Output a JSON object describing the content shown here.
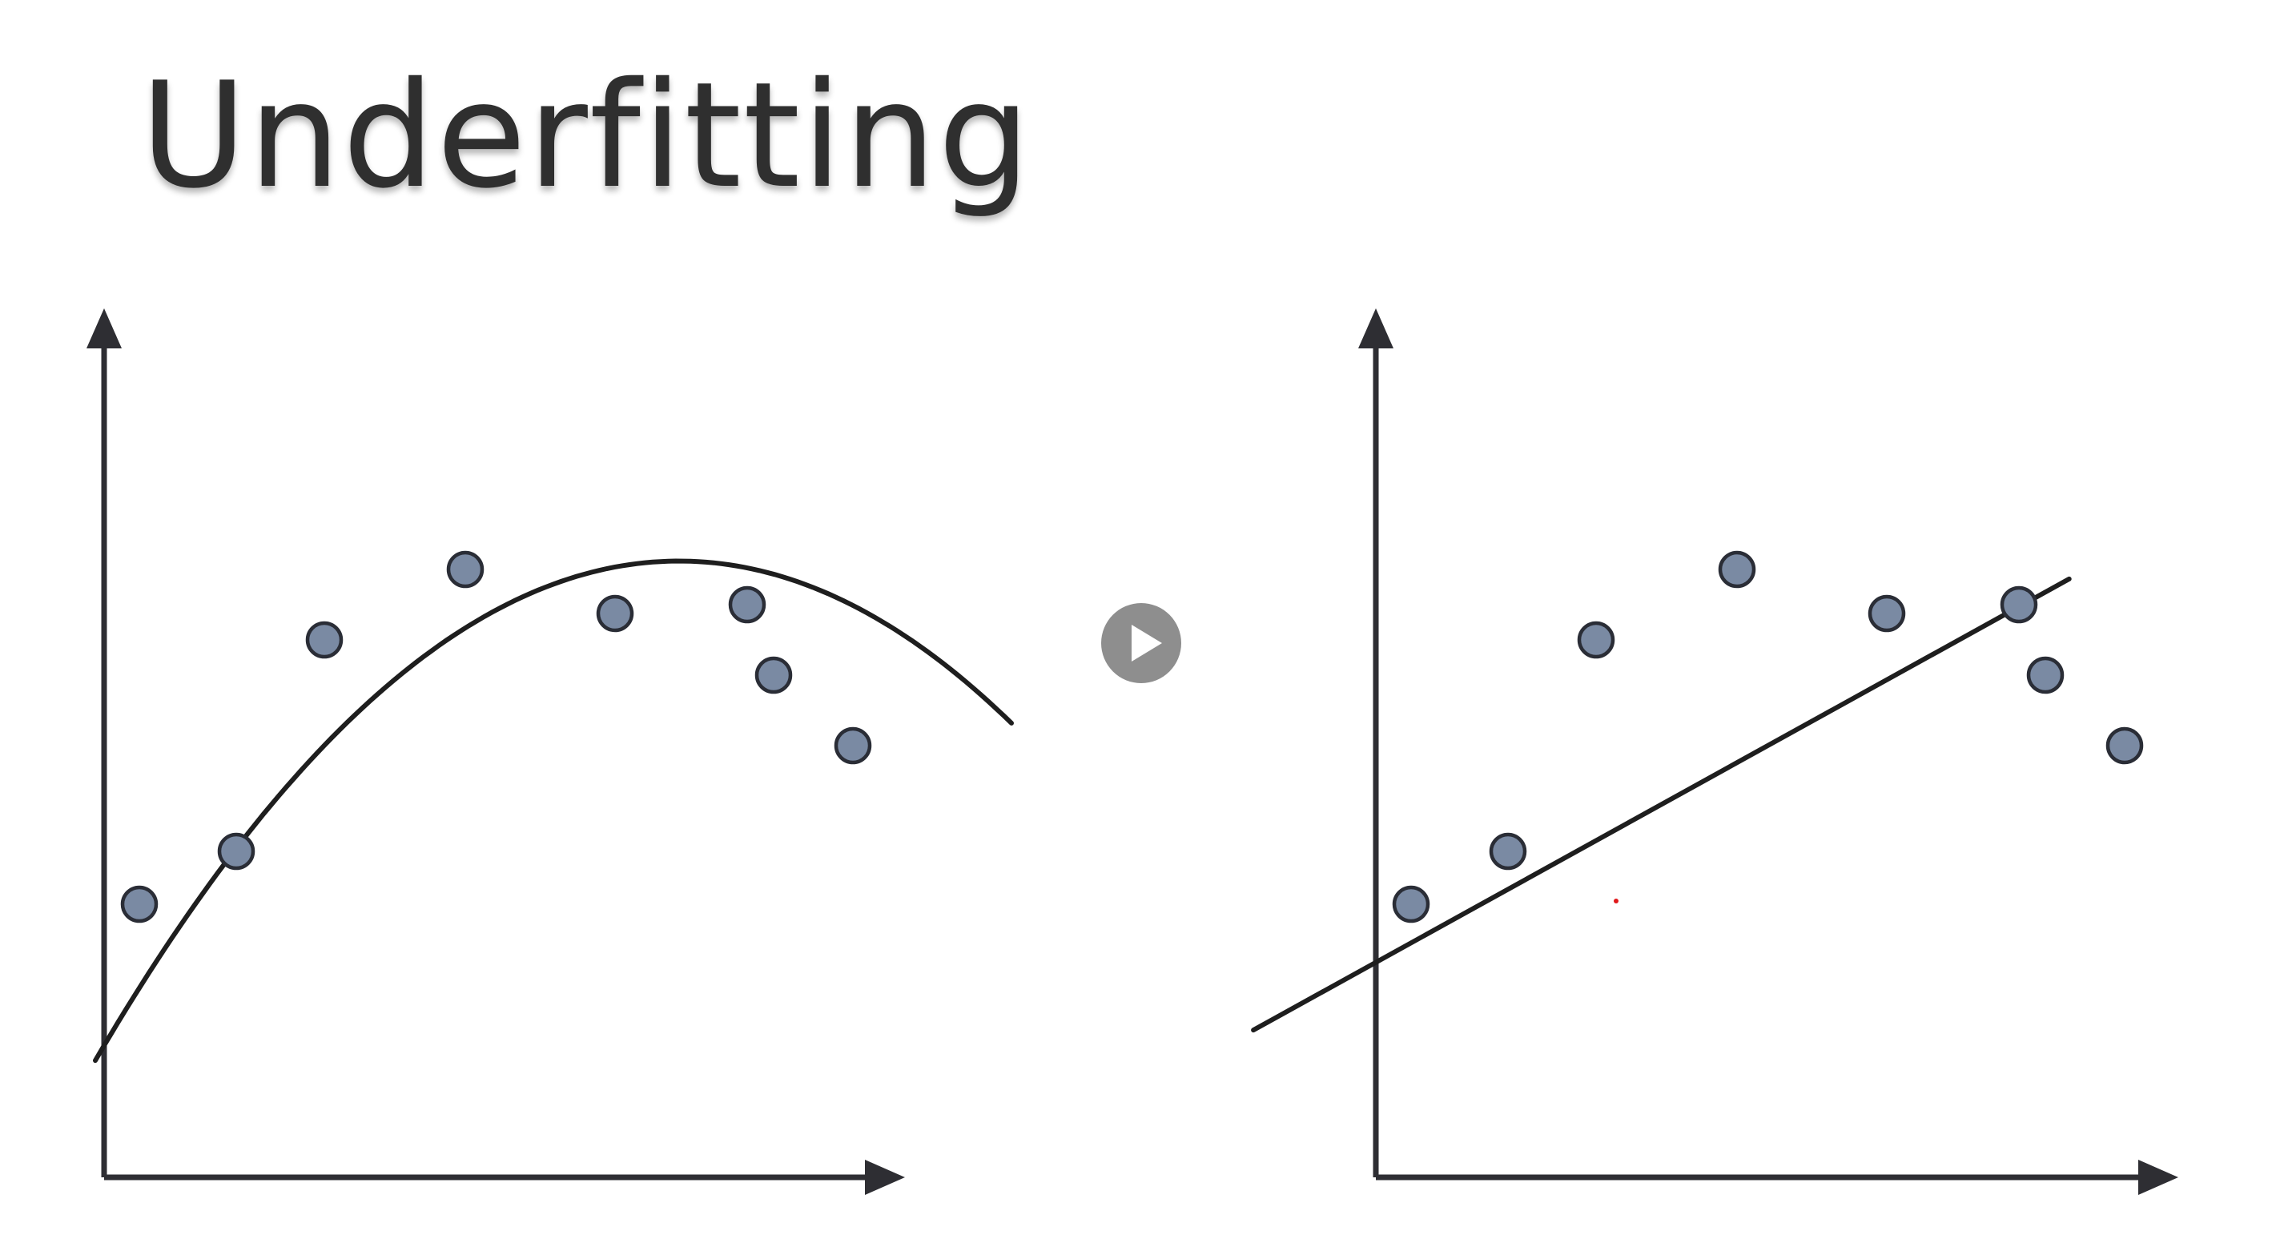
{
  "slide": {
    "title": "Underfitting"
  },
  "colors": {
    "axis": "#2e2e33",
    "curve": "#1e1e1e",
    "point_fill": "#7a8aa3",
    "point_stroke": "#2a2d36",
    "title": "#2f2f2f",
    "play_button": "#6e6e6e",
    "stray_dot": "#e0181b"
  },
  "icons": {
    "play": "play-icon"
  },
  "panels": [
    {
      "fit_type": "quadratic-curve",
      "points": [
        [
          0.04,
          0.31
        ],
        [
          0.15,
          0.37
        ],
        [
          0.25,
          0.61
        ],
        [
          0.41,
          0.69
        ],
        [
          0.58,
          0.64
        ],
        [
          0.73,
          0.65
        ],
        [
          0.76,
          0.57
        ],
        [
          0.85,
          0.49
        ]
      ],
      "curve": {
        "a": -1.2915,
        "b": 1.6855,
        "c": 0.1496,
        "x_range": [
          -0.01,
          1.03
        ]
      }
    },
    {
      "fit_type": "straight-line",
      "points": [
        [
          0.04,
          0.31
        ],
        [
          0.15,
          0.37
        ],
        [
          0.25,
          0.61
        ],
        [
          0.41,
          0.69
        ],
        [
          0.58,
          0.64
        ],
        [
          0.73,
          0.65
        ],
        [
          0.76,
          0.57
        ],
        [
          0.85,
          0.49
        ]
      ],
      "line": {
        "slope": 0.553,
        "intercept": 0.244,
        "x_range": [
          -0.139,
          0.787
        ]
      }
    }
  ]
}
